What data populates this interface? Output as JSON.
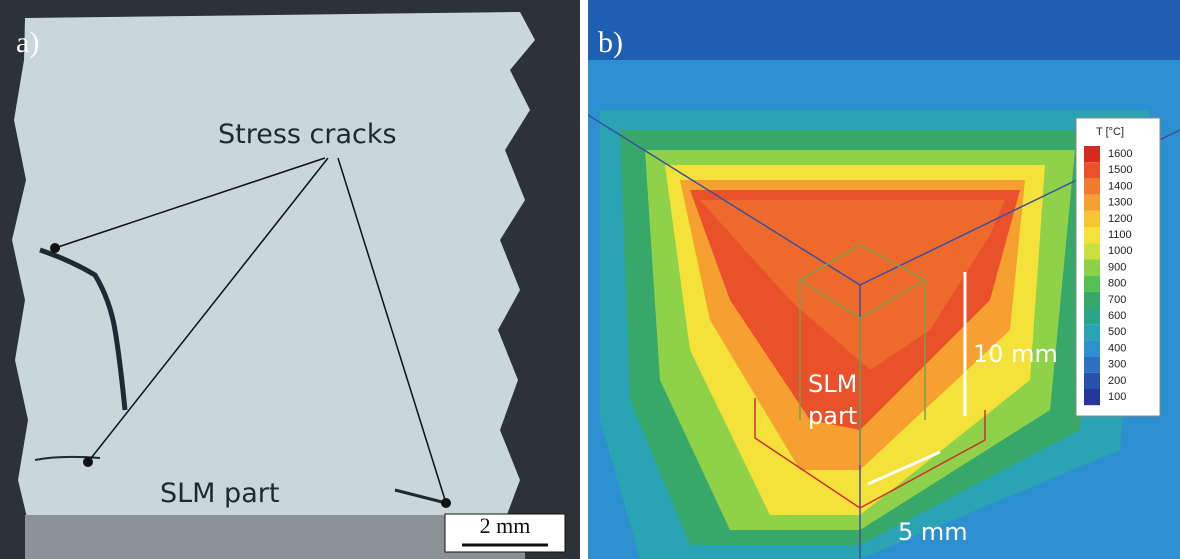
{
  "panel_a": {
    "label": "a)",
    "annotation": "Stress cracks",
    "part_label": "SLM part",
    "scale_bar": "2 mm"
  },
  "panel_b": {
    "label": "b)",
    "part_label_1": "SLM",
    "part_label_2": "part",
    "height_label": "10 mm",
    "width_label": "5 mm",
    "colorbar": {
      "title": "T [°C]",
      "labels": [
        "1600",
        "1500",
        "1400",
        "1300",
        "1200",
        "1100",
        "1000",
        "900",
        "800",
        "700",
        "600",
        "500",
        "400",
        "300",
        "200",
        "100"
      ],
      "colors": [
        "#d92a20",
        "#e8512a",
        "#f07a2e",
        "#f5a030",
        "#f7c52f",
        "#f4e23a",
        "#c9e040",
        "#8fd24a",
        "#55bf55",
        "#38a86a",
        "#2ba58a",
        "#2aa3b4",
        "#2c8fcf",
        "#2d6fc0",
        "#2a52ad",
        "#24379a"
      ]
    }
  }
}
